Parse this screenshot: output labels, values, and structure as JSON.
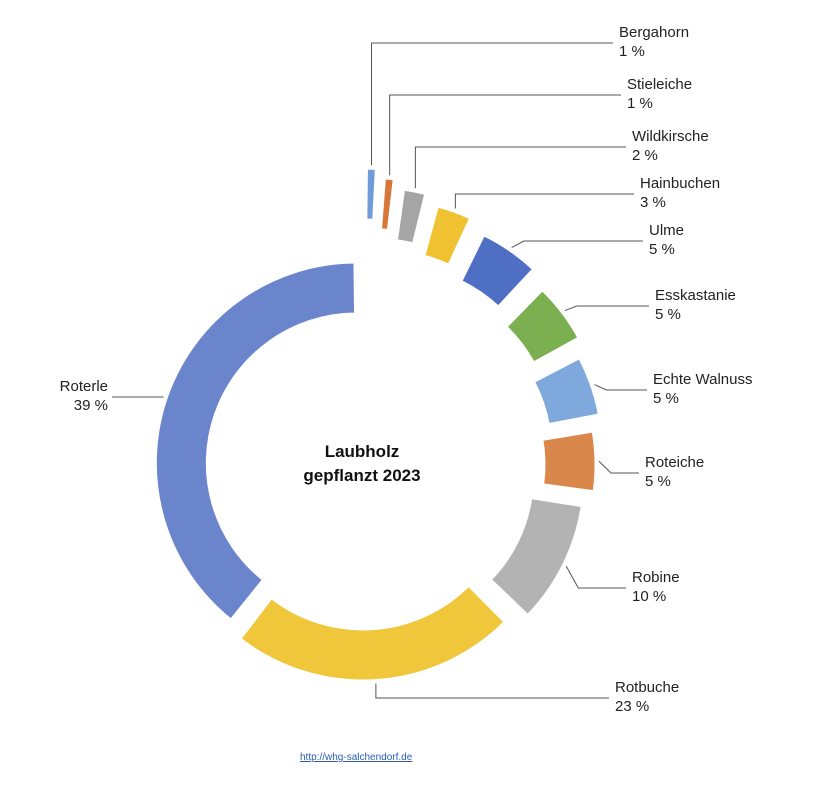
{
  "chart_data": {
    "type": "donut",
    "title": "Laubholz gepflanzt 2023",
    "categories": [
      "Bergahorn",
      "Stieleiche",
      "Wildkirsche",
      "Hainbuchen",
      "Ulme",
      "Esskastanie",
      "Echte Walnuss",
      "Roteiche",
      "Robine",
      "Rotbuche",
      "Roterle"
    ],
    "values": [
      1,
      1,
      2,
      3,
      5,
      5,
      5,
      5,
      10,
      23,
      39
    ],
    "value_labels": [
      "1 %",
      "1 %",
      "2 %",
      "3 %",
      "5 %",
      "5 %",
      "5 %",
      "5 %",
      "10 %",
      "23 %",
      "39 %"
    ],
    "colors": [
      "#6f9bd6",
      "#d9773a",
      "#a5a5a5",
      "#f0c232",
      "#4f6fc4",
      "#7caf4f",
      "#7fa8dc",
      "#d9874a",
      "#b3b3b3",
      "#f0c73a",
      "#6a85cc"
    ]
  },
  "footer": {
    "link": "http://whg-salchendorf.de"
  }
}
